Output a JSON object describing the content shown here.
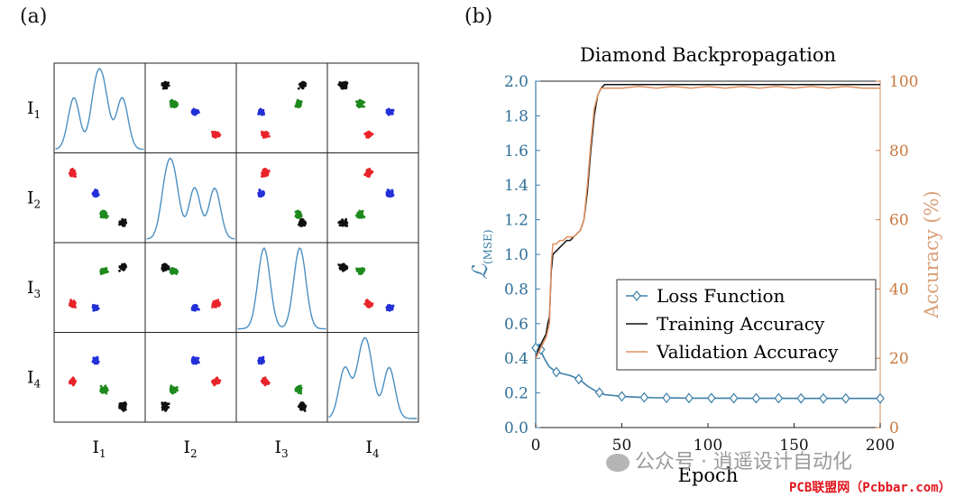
{
  "panel_a_label": "(a)",
  "panel_b_label": "(b)",
  "colors": {
    "red": "#e8242a",
    "blue": "#2430d8",
    "green": "#1e8a1e",
    "black": "#111111",
    "kde": "#4b8fc2",
    "loss": "#3c7fa8",
    "val": "#e09060"
  },
  "chart_data": [
    {
      "type": "scatter",
      "title": "",
      "variables": [
        {
          "base": "I",
          "sub": "1"
        },
        {
          "base": "I",
          "sub": "2"
        },
        {
          "base": "I",
          "sub": "3"
        },
        {
          "base": "I",
          "sub": "4"
        }
      ],
      "clusters": [
        {
          "color": "red",
          "centers": [
            0.18,
            0.8,
            0.3,
            0.45
          ]
        },
        {
          "color": "blue",
          "centers": [
            0.45,
            0.55,
            0.25,
            0.7
          ]
        },
        {
          "color": "green",
          "centers": [
            0.55,
            0.3,
            0.7,
            0.35
          ]
        },
        {
          "color": "black",
          "centers": [
            0.78,
            0.2,
            0.75,
            0.15
          ]
        }
      ],
      "diagonal": "kde",
      "grid": false
    },
    {
      "type": "line",
      "title": "Diamond Backpropagation",
      "xlabel": "Epoch",
      "ylabel_left": "ℒ",
      "ylabel_left_sub": "(MSE)",
      "ylabel_right": "Accuracy (%)",
      "xlim": [
        0,
        200
      ],
      "ylim_left": [
        0.0,
        2.0
      ],
      "ylim_right": [
        0,
        100
      ],
      "xticks": [
        "0",
        "50",
        "100",
        "150",
        "200"
      ],
      "yticks_left": [
        "0.0",
        "0.2",
        "0.4",
        "0.6",
        "0.8",
        "1.0",
        "1.2",
        "1.4",
        "1.6",
        "1.8",
        "2.0"
      ],
      "yticks_right": [
        "0",
        "20",
        "40",
        "60",
        "80",
        "100"
      ],
      "legend_position": "lower-right",
      "series": [
        {
          "name": "Loss Function",
          "axis": "left",
          "color": "loss",
          "marker": "diamond",
          "x": [
            0,
            2,
            4,
            6,
            8,
            12,
            16,
            20,
            25,
            30,
            35,
            40,
            50,
            60,
            70,
            80,
            90,
            100,
            120,
            140,
            160,
            180,
            200
          ],
          "y": [
            0.46,
            0.48,
            0.42,
            0.38,
            0.35,
            0.32,
            0.31,
            0.3,
            0.28,
            0.24,
            0.21,
            0.19,
            0.18,
            0.175,
            0.172,
            0.171,
            0.17,
            0.17,
            0.169,
            0.169,
            0.168,
            0.168,
            0.168
          ],
          "marker_x": [
            0,
            3,
            12,
            25,
            37,
            50,
            63,
            76,
            89,
            102,
            115,
            128,
            141,
            154,
            167,
            180,
            200
          ]
        },
        {
          "name": "Training Accuracy",
          "axis": "right",
          "color": "black",
          "x": [
            0,
            2,
            4,
            6,
            7,
            8,
            9,
            10,
            12,
            14,
            16,
            18,
            20,
            22,
            24,
            26,
            28,
            30,
            32,
            34,
            36,
            38,
            40,
            45,
            50,
            60,
            80,
            100,
            120,
            140,
            160,
            180,
            200
          ],
          "y": [
            20,
            23,
            25,
            27,
            30,
            32,
            45,
            50,
            51,
            52,
            53,
            54,
            54,
            55,
            56,
            57,
            60,
            68,
            80,
            90,
            96,
            98,
            99,
            99,
            99,
            99,
            99,
            99,
            99,
            99,
            99,
            99,
            99
          ]
        },
        {
          "name": "Validation Accuracy",
          "axis": "right",
          "color": "val",
          "x": [
            0,
            2,
            4,
            6,
            7,
            8,
            9,
            10,
            12,
            14,
            16,
            18,
            20,
            22,
            24,
            26,
            28,
            30,
            32,
            34,
            36,
            38,
            40,
            50,
            60,
            70,
            80,
            90,
            100,
            110,
            120,
            130,
            140,
            150,
            160,
            170,
            180,
            190,
            200
          ],
          "y": [
            20,
            22,
            24,
            26,
            28,
            30,
            47,
            53,
            53,
            54,
            54,
            55,
            55,
            55,
            56,
            57,
            60,
            70,
            82,
            92,
            96,
            98,
            98,
            98,
            98.5,
            98,
            98.5,
            98,
            98.5,
            98,
            98.5,
            98,
            98.5,
            98,
            98.5,
            98,
            98.5,
            98,
            98
          ]
        }
      ],
      "grid": false
    }
  ],
  "watermark_text": "公众号 · 逍遥设计自动化",
  "footer_mark": "PCB联盟网（Pcbbar.com）"
}
